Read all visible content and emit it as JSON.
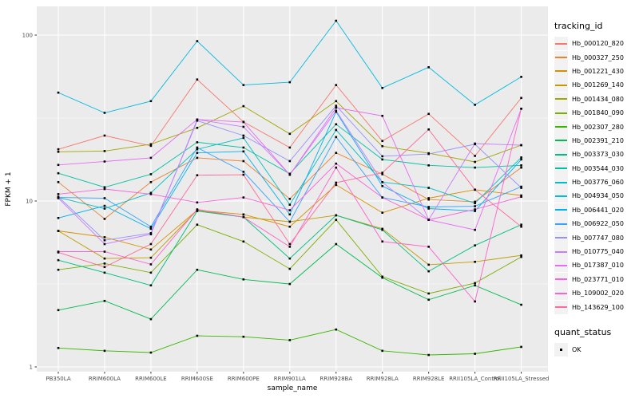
{
  "figure": {
    "xlabel": "sample_name",
    "ylabel": "FPKM + 1",
    "panel_bg": "#EBEBEB",
    "grid_color": "#FFFFFF",
    "tick_label_color": "#4D4D4D",
    "point_color": "#000000"
  },
  "legend": {
    "title": "tracking_id"
  },
  "quant_legend": {
    "title": "quant_status",
    "items": [
      {
        "label": "OK",
        "marker": "black-square"
      }
    ]
  },
  "chart_data": {
    "type": "line",
    "title": "",
    "xlabel": "sample_name",
    "ylabel": "FPKM + 1",
    "y_scale": "log10",
    "y_ticks": [
      1,
      10,
      100
    ],
    "y_tick_labels": [
      "1",
      "10",
      "100"
    ],
    "y_minor_ticks": [
      3.1623,
      31.623
    ],
    "ylim": [
      1,
      150
    ],
    "grid": true,
    "legend_position": "right",
    "point_marker": "black-square",
    "categories": [
      "PB350LA",
      "RRIM600LA",
      "RRIM600LE",
      "RRIM600SE",
      "RRIM600PE",
      "RRIM901LA",
      "RRIM928BA",
      "RRIM928LA",
      "RRIM928LE",
      "RRII105LA_Control",
      "RRII105LA_Stressed"
    ],
    "series": [
      {
        "name": "Hb_000120_820",
        "color": "#F8766D",
        "values": [
          20.5,
          24.8,
          21.5,
          54,
          30,
          21,
          50,
          23,
          33.5,
          18.7,
          41.8
        ]
      },
      {
        "name": "Hb_000327_250",
        "color": "#EA8331",
        "values": [
          13,
          7.8,
          13,
          18.2,
          17.4,
          10.3,
          19.5,
          14.5,
          10.2,
          9.9,
          15.9
        ]
      },
      {
        "name": "Hb_001221_430",
        "color": "#D89000",
        "values": [
          6.6,
          6.05,
          5.1,
          8.8,
          8.3,
          7.0,
          12.5,
          8.5,
          10.4,
          11.7,
          10.8
        ]
      },
      {
        "name": "Hb_001269_140",
        "color": "#C09B00",
        "values": [
          6.6,
          4.5,
          4.55,
          8.8,
          8.0,
          7.5,
          8.2,
          6.8,
          4.13,
          4.3,
          4.7
        ]
      },
      {
        "name": "Hb_001434_080",
        "color": "#A3A500",
        "values": [
          19.8,
          20,
          22,
          27.6,
          37.3,
          25.4,
          40,
          21.4,
          19.4,
          17.2,
          21.7
        ]
      },
      {
        "name": "Hb_001840_090",
        "color": "#7CAE00",
        "values": [
          3.85,
          4.2,
          3.7,
          7.2,
          5.7,
          3.9,
          7.7,
          3.5,
          2.77,
          3.2,
          4.6
        ]
      },
      {
        "name": "Hb_002307_280",
        "color": "#39B600",
        "values": [
          1.3,
          1.25,
          1.22,
          1.54,
          1.52,
          1.45,
          1.68,
          1.25,
          1.18,
          1.2,
          1.32
        ]
      },
      {
        "name": "Hb_002391_210",
        "color": "#00BB4E",
        "values": [
          2.2,
          2.5,
          1.94,
          3.85,
          3.37,
          3.16,
          5.5,
          3.45,
          2.54,
          3.1,
          2.37
        ]
      },
      {
        "name": "Hb_003373_030",
        "color": "#00BF7D",
        "values": [
          4.4,
          3.7,
          3.1,
          8.7,
          8.0,
          4.5,
          8.2,
          6.7,
          3.77,
          5.4,
          7.2
        ]
      },
      {
        "name": "Hb_003544_030",
        "color": "#00C1A3",
        "values": [
          14.7,
          12.1,
          14.5,
          22.6,
          21,
          14.6,
          29,
          17.8,
          16.4,
          15.9,
          16.4
        ]
      },
      {
        "name": "Hb_003776_060",
        "color": "#00BFC4",
        "values": [
          10.5,
          9.0,
          11.2,
          20.5,
          24,
          9.5,
          26.8,
          13,
          12,
          9.7,
          18.3
        ]
      },
      {
        "name": "Hb_004934_050",
        "color": "#00BAE0",
        "values": [
          45,
          34,
          40,
          92,
          50,
          52,
          122,
          48,
          64,
          38,
          56
        ]
      },
      {
        "name": "Hb_006441_020",
        "color": "#00B0F6",
        "values": [
          7.9,
          9.35,
          6.8,
          19.5,
          19.9,
          8.3,
          34.5,
          12.3,
          9.0,
          8.7,
          17.8
        ]
      },
      {
        "name": "Hb_006922_050",
        "color": "#35A2FF",
        "values": [
          10.5,
          10.4,
          7.0,
          21,
          15,
          7.5,
          24.3,
          10.5,
          9.2,
          9.3,
          12.2
        ]
      },
      {
        "name": "Hb_007747_080",
        "color": "#9590FF",
        "values": [
          10.6,
          5.8,
          6.4,
          30.5,
          24.8,
          17.4,
          37.5,
          18.6,
          19.2,
          22,
          12.0
        ]
      },
      {
        "name": "Hb_010775_040",
        "color": "#C77CFF",
        "values": [
          10.4,
          5.5,
          6.3,
          31,
          28,
          14.4,
          35,
          13,
          7.7,
          22.2,
          21.7
        ]
      },
      {
        "name": "Hb_017387_010",
        "color": "#E76BF3",
        "values": [
          16.5,
          17.3,
          18.2,
          31,
          29.9,
          14.4,
          36.5,
          32.6,
          7.7,
          6.7,
          36
        ]
      },
      {
        "name": "Hb_023771_010",
        "color": "#FA62DB",
        "values": [
          11,
          11.8,
          11,
          9.8,
          10.5,
          8.8,
          16.8,
          10.5,
          7.7,
          8.9,
          10.6
        ]
      },
      {
        "name": "Hb_109002_020",
        "color": "#FF61CC",
        "values": [
          4.95,
          4.95,
          4.15,
          8.9,
          8.0,
          5.3,
          15.9,
          5.7,
          5.3,
          2.48,
          36
        ]
      },
      {
        "name": "Hb_143629_100",
        "color": "#FF6A98",
        "values": [
          4.9,
          4.0,
          5.5,
          14.3,
          14.4,
          5.5,
          12.9,
          14.8,
          27,
          11.7,
          7.0
        ]
      }
    ]
  }
}
